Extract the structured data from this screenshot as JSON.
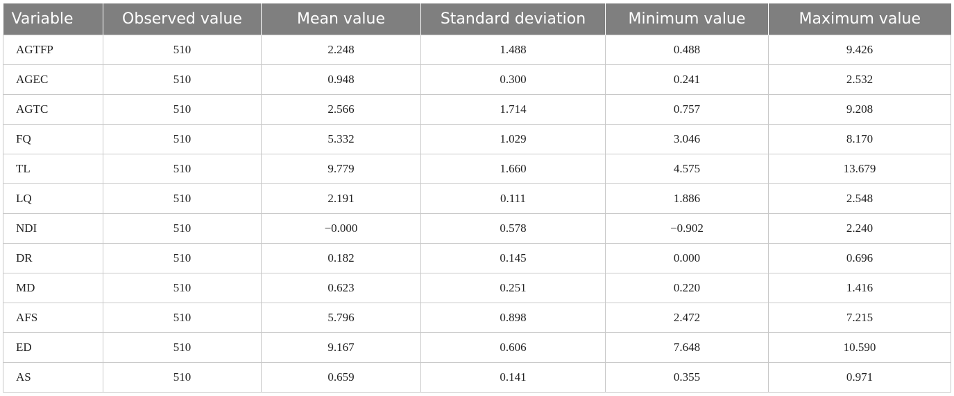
{
  "table": {
    "headers": [
      "Variable",
      "Observed value",
      "Mean value",
      "Standard deviation",
      "Minimum value",
      "Maximum value"
    ],
    "rows": [
      [
        "AGTFP",
        "510",
        "2.248",
        "1.488",
        "0.488",
        "9.426"
      ],
      [
        "AGEC",
        "510",
        "0.948",
        "0.300",
        "0.241",
        "2.532"
      ],
      [
        "AGTC",
        "510",
        "2.566",
        "1.714",
        "0.757",
        "9.208"
      ],
      [
        "FQ",
        "510",
        "5.332",
        "1.029",
        "3.046",
        "8.170"
      ],
      [
        "TL",
        "510",
        "9.779",
        "1.660",
        "4.575",
        "13.679"
      ],
      [
        "LQ",
        "510",
        "2.191",
        "0.111",
        "1.886",
        "2.548"
      ],
      [
        "NDI",
        "510",
        "−0.000",
        "0.578",
        "−0.902",
        "2.240"
      ],
      [
        "DR",
        "510",
        "0.182",
        "0.145",
        "0.000",
        "0.696"
      ],
      [
        "MD",
        "510",
        "0.623",
        "0.251",
        "0.220",
        "1.416"
      ],
      [
        "AFS",
        "510",
        "5.796",
        "0.898",
        "2.472",
        "7.215"
      ],
      [
        "ED",
        "510",
        "9.167",
        "0.606",
        "7.648",
        "10.590"
      ],
      [
        "AS",
        "510",
        "0.659",
        "0.141",
        "0.355",
        "0.971"
      ]
    ]
  },
  "colors": {
    "header_bg": "#7f7f7f",
    "header_text": "#ffffff",
    "border": "#c8c8c8"
  }
}
